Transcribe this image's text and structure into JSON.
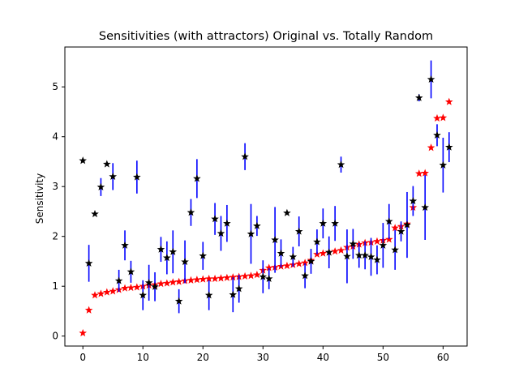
{
  "chart_data": {
    "type": "scatter",
    "title": "Sensitivities (with attractors) Original vs. Totally Random",
    "xlabel": "",
    "ylabel": "Sensitivity",
    "xlim": [
      -3,
      64
    ],
    "ylim": [
      -0.2,
      5.8
    ],
    "xticks": [
      0,
      10,
      20,
      30,
      40,
      50,
      60
    ],
    "yticks": [
      0,
      1,
      2,
      3,
      4,
      5
    ],
    "grid": false,
    "legend": "none",
    "colors": {
      "original": "#ff0000",
      "random": "#000000",
      "errorbar": "#0000ff"
    },
    "series": [
      {
        "marker": "star",
        "color": "#ff0000",
        "x": [
          0,
          1,
          2,
          3,
          4,
          5,
          6,
          7,
          8,
          9,
          10,
          11,
          12,
          13,
          14,
          15,
          16,
          17,
          18,
          19,
          20,
          21,
          22,
          23,
          24,
          25,
          26,
          27,
          28,
          29,
          30,
          31,
          32,
          33,
          34,
          35,
          36,
          37,
          38,
          39,
          40,
          41,
          42,
          43,
          44,
          45,
          46,
          47,
          48,
          49,
          50,
          51,
          52,
          53,
          54,
          55,
          56,
          57,
          58,
          59,
          60,
          61
        ],
        "y": [
          0.06,
          0.52,
          0.82,
          0.85,
          0.88,
          0.9,
          0.93,
          0.96,
          0.97,
          0.98,
          1.0,
          1.02,
          1.03,
          1.05,
          1.06,
          1.08,
          1.09,
          1.11,
          1.12,
          1.13,
          1.14,
          1.15,
          1.15,
          1.16,
          1.17,
          1.18,
          1.19,
          1.2,
          1.21,
          1.23,
          1.32,
          1.37,
          1.38,
          1.4,
          1.41,
          1.43,
          1.45,
          1.47,
          1.52,
          1.64,
          1.66,
          1.68,
          1.7,
          1.72,
          1.78,
          1.8,
          1.84,
          1.87,
          1.88,
          1.9,
          1.92,
          1.94,
          2.17,
          2.2,
          2.25,
          2.58,
          3.26,
          3.27,
          3.78,
          4.37,
          4.38,
          4.7
        ]
      },
      {
        "marker": "star",
        "color": "#000000",
        "errorbar_color": "#0000ff",
        "x": [
          0,
          1,
          2,
          3,
          4,
          5,
          6,
          7,
          8,
          9,
          10,
          11,
          12,
          13,
          14,
          15,
          16,
          17,
          18,
          19,
          20,
          21,
          22,
          23,
          24,
          25,
          26,
          27,
          28,
          29,
          30,
          31,
          32,
          33,
          34,
          35,
          36,
          37,
          38,
          39,
          40,
          41,
          42,
          43,
          44,
          45,
          46,
          47,
          48,
          49,
          50,
          51,
          52,
          53,
          54,
          55,
          56,
          57,
          58,
          59,
          60,
          61
        ],
        "y": [
          3.52,
          1.46,
          2.45,
          2.99,
          3.45,
          3.2,
          1.11,
          1.82,
          1.29,
          3.19,
          0.82,
          1.07,
          0.99,
          1.74,
          1.57,
          1.69,
          0.7,
          1.49,
          2.48,
          3.16,
          1.61,
          0.82,
          2.35,
          2.06,
          2.26,
          0.83,
          0.95,
          3.6,
          2.05,
          2.21,
          1.19,
          1.15,
          1.93,
          1.66,
          2.47,
          1.59,
          2.1,
          1.21,
          1.5,
          1.89,
          2.26,
          1.68,
          2.26,
          3.44,
          1.6,
          1.85,
          1.62,
          1.62,
          1.59,
          1.53,
          1.82,
          2.3,
          1.73,
          2.1,
          2.23,
          2.71,
          4.78,
          2.58,
          5.15,
          4.03,
          3.43,
          3.79
        ],
        "err": [
          0,
          0.37,
          0,
          0.18,
          0,
          0.27,
          0.22,
          0.3,
          0.22,
          0.33,
          0.3,
          0.36,
          0.29,
          0.25,
          0.33,
          0.43,
          0.24,
          0.43,
          0.27,
          0.39,
          0.28,
          0.3,
          0.32,
          0.35,
          0.37,
          0.35,
          0.28,
          0.27,
          0.6,
          0.2,
          0.33,
          0.21,
          0.66,
          0.28,
          0,
          0.2,
          0.3,
          0.25,
          0.25,
          0.25,
          0.3,
          0.32,
          0.35,
          0.16,
          0.54,
          0.3,
          0.25,
          0.28,
          0.38,
          0.29,
          0.45,
          0.35,
          0.4,
          0.2,
          0.66,
          0.3,
          0.07,
          0.65,
          0.38,
          0.22,
          0.55,
          0.3
        ]
      }
    ]
  }
}
